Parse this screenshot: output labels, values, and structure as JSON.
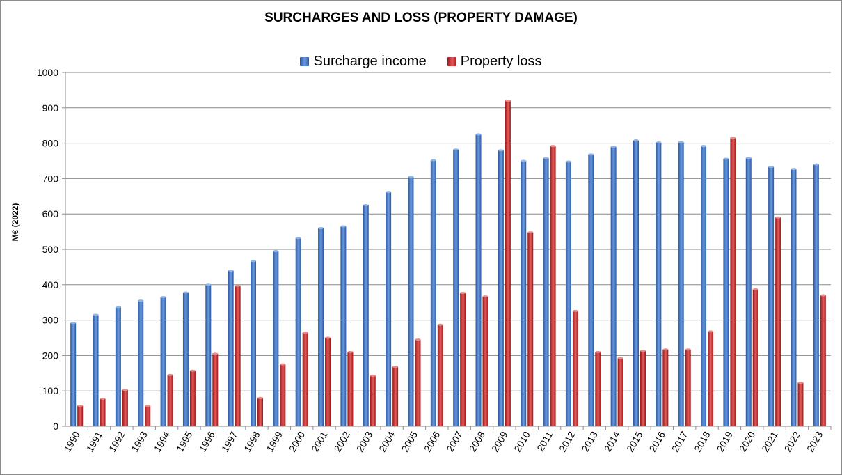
{
  "chart_data": {
    "type": "bar",
    "title": "SURCHARGES AND LOSS (PROPERTY DAMAGE)",
    "ylabel": "M€ (2022)",
    "xlabel": "",
    "ylim": [
      0,
      1000
    ],
    "yticks": [
      0,
      100,
      200,
      300,
      400,
      500,
      600,
      700,
      800,
      900,
      1000
    ],
    "grid": true,
    "legend_position": "top-center",
    "categories": [
      "1990",
      "1991",
      "1992",
      "1993",
      "1994",
      "1995",
      "1996",
      "1997",
      "1998",
      "1999",
      "2000",
      "2001",
      "2002",
      "2003",
      "2004",
      "2005",
      "2006",
      "2007",
      "2008",
      "2009",
      "2010",
      "2011",
      "2012",
      "2013",
      "2014",
      "2015",
      "2016",
      "2017",
      "2018",
      "2019",
      "2020",
      "2021",
      "2022",
      "2023"
    ],
    "series": [
      {
        "name": "Surcharge income",
        "color": "#3a6cc0",
        "values": [
          292,
          315,
          337,
          355,
          365,
          378,
          400,
          440,
          467,
          495,
          532,
          560,
          565,
          625,
          662,
          705,
          752,
          782,
          825,
          780,
          750,
          758,
          748,
          768,
          790,
          808,
          802,
          803,
          792,
          756,
          758,
          733,
          727,
          740
        ]
      },
      {
        "name": "Property loss",
        "color": "#c83030",
        "values": [
          58,
          78,
          103,
          58,
          145,
          157,
          205,
          397,
          80,
          175,
          265,
          250,
          210,
          143,
          168,
          245,
          287,
          377,
          367,
          920,
          548,
          792,
          326,
          210,
          193,
          213,
          217,
          217,
          268,
          815,
          387,
          590,
          123,
          370
        ]
      }
    ]
  }
}
